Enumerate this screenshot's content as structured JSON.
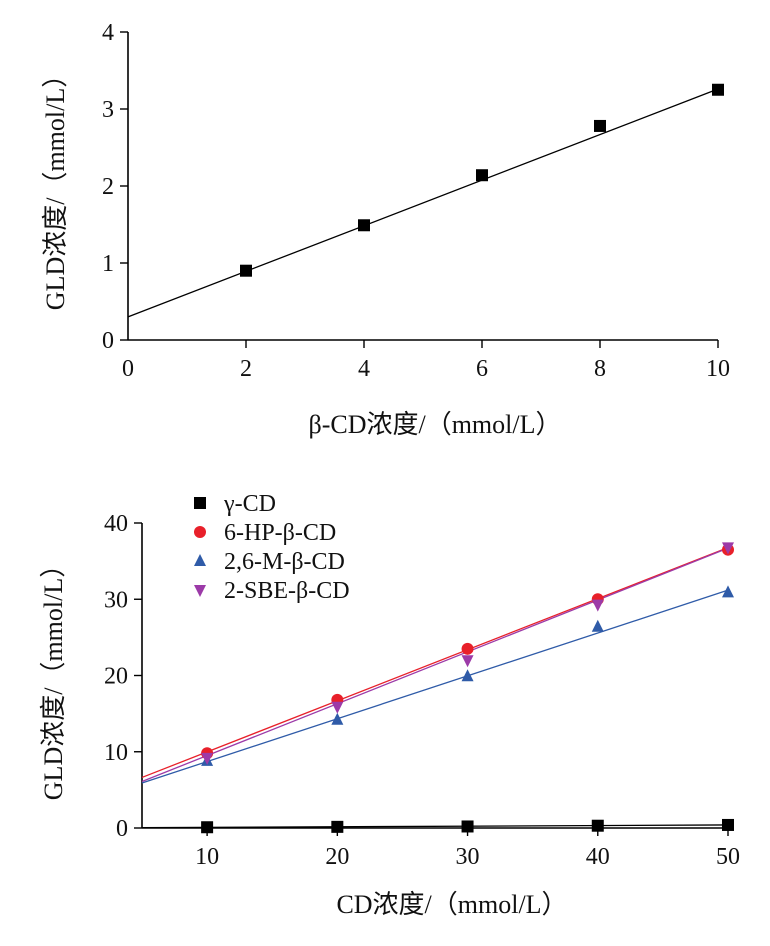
{
  "chart_data": [
    {
      "type": "scatter",
      "title": "",
      "xlabel": "β-CD浓度/（mmol/L）",
      "ylabel": "GLD浓度/（mmol/L）",
      "xlim": [
        0,
        10
      ],
      "ylim": [
        0,
        4
      ],
      "xticks": [
        "0",
        "2",
        "4",
        "6",
        "8",
        "10"
      ],
      "yticks": [
        "0",
        "1",
        "2",
        "3",
        "4"
      ],
      "grid": false,
      "legend": "none",
      "series": [
        {
          "marker": "square",
          "color": "#000000",
          "x": [
            2,
            4,
            6,
            8,
            10
          ],
          "y": [
            0.9,
            1.49,
            2.14,
            2.78,
            3.25
          ],
          "fit": {
            "intercept": 0.3,
            "slope": 0.296
          }
        }
      ]
    },
    {
      "type": "scatter",
      "title": "",
      "xlabel": "CD浓度/（mmol/L）",
      "ylabel": "GLD浓度/（mmol/L）",
      "xlim": [
        5,
        50
      ],
      "ylim": [
        0,
        40
      ],
      "xticks": [
        "10",
        "20",
        "30",
        "40",
        "50"
      ],
      "yticks": [
        "0",
        "10",
        "20",
        "30",
        "40"
      ],
      "grid": false,
      "legend": "top-left",
      "series": [
        {
          "name": "γ-CD",
          "marker": "square",
          "color": "#000000",
          "x": [
            10,
            20,
            30,
            40,
            50
          ],
          "y": [
            0.1,
            0.15,
            0.2,
            0.3,
            0.4
          ],
          "fit": {
            "intercept": 0.0,
            "slope": 0.008
          }
        },
        {
          "name": "6-HP-β-CD",
          "marker": "circle",
          "color": "#e8202a",
          "x": [
            10,
            20,
            30,
            40,
            50
          ],
          "y": [
            9.8,
            16.8,
            23.5,
            30.0,
            36.5
          ],
          "fit": {
            "intercept": 3.28,
            "slope": 0.67
          }
        },
        {
          "name": "2,6-M-β-CD",
          "marker": "triangle-up",
          "color": "#2f5ba8",
          "x": [
            10,
            20,
            30,
            40,
            50
          ],
          "y": [
            8.8,
            14.2,
            19.9,
            26.4,
            30.9
          ],
          "fit": {
            "intercept": 3.09,
            "slope": 0.562
          }
        },
        {
          "name": "2-SBE-β-CD",
          "marker": "triangle-down",
          "color": "#9c3aa8",
          "x": [
            10,
            20,
            30,
            40,
            50
          ],
          "y": [
            9.2,
            15.9,
            22.0,
            29.3,
            36.8
          ],
          "fit": {
            "intercept": 2.7,
            "slope": 0.68
          }
        }
      ]
    }
  ]
}
